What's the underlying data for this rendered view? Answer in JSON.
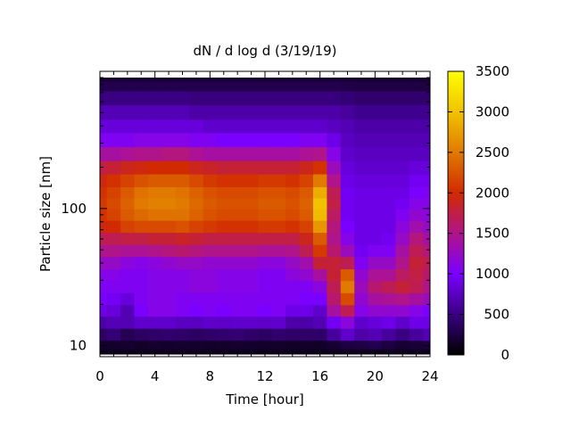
{
  "chart_data": {
    "type": "heatmap",
    "title": "dN / d log d (3/19/19)",
    "xlabel": "Time [hour]",
    "ylabel": "Particle size [nm]",
    "xlim": [
      0,
      24
    ],
    "ylim": [
      8.7,
      900
    ],
    "y_scale": "log",
    "x_ticks": [
      0,
      4,
      8,
      12,
      16,
      20,
      24
    ],
    "x_tick_labels": [
      "0",
      "4",
      "8",
      "12",
      "16",
      "20",
      "24"
    ],
    "y_ticks": [
      10,
      100
    ],
    "y_tick_labels": [
      "10",
      "100"
    ],
    "colorbar": {
      "range": [
        0,
        3500
      ],
      "ticks": [
        0,
        500,
        1000,
        1500,
        2000,
        2500,
        3000,
        3500
      ],
      "tick_labels": [
        "0",
        "500",
        "1000",
        "1500",
        "2000",
        "2500",
        "3000",
        "3500"
      ],
      "colormap": [
        "#000000",
        "#3a0082",
        "#7a00ff",
        "#b0148a",
        "#d12a00",
        "#e07a00",
        "#f2c200",
        "#ffff00"
      ]
    },
    "grid": false,
    "legend": "none",
    "time_hours": [
      0,
      1,
      2,
      3,
      4,
      5,
      6,
      7,
      8,
      9,
      10,
      11,
      12,
      13,
      14,
      15,
      16,
      17,
      18,
      19,
      20,
      21,
      22,
      23,
      24
    ],
    "size_nm": [
      9,
      10,
      12,
      15,
      18,
      22,
      27,
      33,
      40,
      50,
      60,
      75,
      90,
      110,
      130,
      160,
      200,
      250,
      320,
      400,
      500,
      650,
      800,
      900
    ],
    "values": [
      [
        100,
        100,
        100,
        100,
        100,
        100,
        100,
        100,
        100,
        100,
        100,
        100,
        100,
        100,
        100,
        100,
        100,
        100,
        100,
        100,
        100,
        100,
        100,
        100,
        100
      ],
      [
        180,
        170,
        180,
        160,
        180,
        170,
        180,
        170,
        160,
        170,
        180,
        170,
        160,
        170,
        150,
        160,
        150,
        200,
        250,
        260,
        300,
        250,
        200,
        220,
        250
      ],
      [
        400,
        450,
        320,
        380,
        400,
        420,
        400,
        380,
        400,
        420,
        440,
        400,
        380,
        420,
        400,
        400,
        400,
        600,
        800,
        650,
        700,
        600,
        500,
        600,
        700
      ],
      [
        650,
        700,
        700,
        800,
        800,
        800,
        750,
        750,
        800,
        780,
        800,
        800,
        780,
        800,
        650,
        650,
        700,
        950,
        1150,
        800,
        850,
        900,
        800,
        900,
        900
      ],
      [
        900,
        850,
        700,
        1000,
        1100,
        1100,
        1050,
        1000,
        1050,
        1000,
        1050,
        1050,
        1000,
        1050,
        900,
        900,
        800,
        1400,
        1700,
        1100,
        1200,
        1200,
        1200,
        1100,
        1000
      ],
      [
        1000,
        950,
        850,
        1050,
        1100,
        1100,
        1050,
        1050,
        1050,
        1050,
        1050,
        1050,
        1050,
        1050,
        1050,
        1000,
        1000,
        1600,
        2200,
        1200,
        1400,
        1450,
        1500,
        1400,
        1300
      ],
      [
        1050,
        1050,
        1050,
        1050,
        1100,
        1100,
        1100,
        1150,
        1150,
        1100,
        1100,
        1100,
        1050,
        1050,
        1050,
        1050,
        1150,
        1700,
        2500,
        1300,
        1600,
        1700,
        1800,
        1700,
        1500
      ],
      [
        1100,
        1100,
        1050,
        1050,
        1100,
        1100,
        1100,
        1150,
        1150,
        1100,
        1100,
        1100,
        1050,
        1050,
        1150,
        1200,
        1400,
        1800,
        2300,
        1200,
        1450,
        1450,
        1650,
        1750,
        1600
      ],
      [
        1250,
        1250,
        1150,
        1100,
        1150,
        1200,
        1250,
        1250,
        1200,
        1200,
        1200,
        1200,
        1150,
        1150,
        1250,
        1350,
        1800,
        1800,
        1700,
        1050,
        1250,
        1250,
        1500,
        1800,
        1700
      ],
      [
        1500,
        1500,
        1450,
        1450,
        1500,
        1550,
        1600,
        1550,
        1500,
        1500,
        1500,
        1500,
        1450,
        1450,
        1500,
        1700,
        2100,
        1600,
        1300,
        950,
        1050,
        1050,
        1400,
        1700,
        1550
      ],
      [
        1700,
        1700,
        1750,
        1750,
        1800,
        1800,
        1850,
        1800,
        1750,
        1750,
        1750,
        1750,
        1750,
        1750,
        1750,
        1900,
        2300,
        1500,
        1100,
        900,
        900,
        950,
        1250,
        1550,
        1400
      ],
      [
        1950,
        2000,
        2150,
        2200,
        2200,
        2200,
        2250,
        2150,
        2100,
        2050,
        2050,
        2050,
        2100,
        2100,
        2050,
        2150,
        2700,
        1550,
        1000,
        900,
        900,
        900,
        1150,
        1350,
        1250
      ],
      [
        2050,
        2150,
        2300,
        2400,
        2450,
        2450,
        2450,
        2350,
        2250,
        2200,
        2200,
        2200,
        2250,
        2250,
        2200,
        2300,
        2950,
        1650,
        950,
        900,
        900,
        900,
        1050,
        1200,
        1150
      ],
      [
        2100,
        2200,
        2350,
        2500,
        2550,
        2550,
        2500,
        2400,
        2300,
        2250,
        2250,
        2250,
        2300,
        2300,
        2250,
        2350,
        3000,
        1750,
        950,
        900,
        900,
        900,
        950,
        1100,
        1100
      ],
      [
        2050,
        2150,
        2300,
        2450,
        2500,
        2500,
        2450,
        2350,
        2250,
        2200,
        2200,
        2200,
        2250,
        2250,
        2200,
        2300,
        2850,
        1700,
        950,
        900,
        900,
        900,
        900,
        1000,
        1050
      ],
      [
        1950,
        2050,
        2150,
        2250,
        2300,
        2300,
        2300,
        2200,
        2100,
        2050,
        2050,
        2050,
        2100,
        2100,
        2050,
        2150,
        2500,
        1500,
        900,
        850,
        850,
        850,
        850,
        950,
        950
      ],
      [
        1750,
        1800,
        1900,
        1950,
        2000,
        2000,
        2000,
        1900,
        1850,
        1800,
        1800,
        1800,
        1800,
        1800,
        1800,
        1900,
        2050,
        1300,
        850,
        800,
        800,
        800,
        800,
        850,
        850
      ],
      [
        1400,
        1400,
        1450,
        1500,
        1500,
        1550,
        1550,
        1450,
        1400,
        1400,
        1400,
        1400,
        1400,
        1400,
        1400,
        1450,
        1500,
        1100,
        800,
        750,
        750,
        750,
        750,
        750,
        750
      ],
      [
        1050,
        1050,
        1050,
        1100,
        1100,
        1100,
        1100,
        1050,
        1050,
        1000,
        1000,
        1000,
        1000,
        1000,
        1000,
        1050,
        1050,
        900,
        750,
        700,
        700,
        700,
        700,
        700,
        700
      ],
      [
        850,
        850,
        850,
        850,
        850,
        850,
        850,
        850,
        800,
        800,
        800,
        800,
        800,
        800,
        800,
        800,
        800,
        750,
        700,
        650,
        650,
        650,
        650,
        650,
        650
      ],
      [
        700,
        700,
        700,
        700,
        700,
        700,
        700,
        650,
        650,
        650,
        650,
        650,
        650,
        650,
        650,
        650,
        650,
        650,
        600,
        550,
        550,
        550,
        550,
        550,
        550
      ],
      [
        500,
        500,
        500,
        500,
        500,
        500,
        500,
        480,
        480,
        480,
        480,
        480,
        480,
        480,
        480,
        480,
        480,
        480,
        450,
        420,
        420,
        420,
        420,
        420,
        420
      ],
      [
        300,
        300,
        300,
        300,
        300,
        300,
        300,
        300,
        300,
        300,
        300,
        300,
        300,
        300,
        300,
        300,
        300,
        300,
        280,
        260,
        260,
        260,
        260,
        260,
        260
      ],
      [
        200,
        200,
        200,
        200,
        200,
        200,
        200,
        200,
        200,
        200,
        200,
        200,
        200,
        200,
        200,
        200,
        200,
        200,
        190,
        180,
        180,
        180,
        180,
        180,
        180
      ]
    ]
  }
}
